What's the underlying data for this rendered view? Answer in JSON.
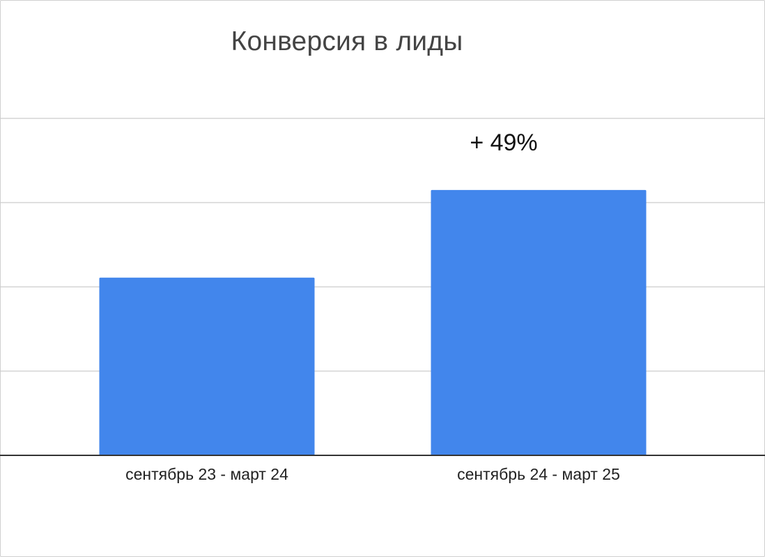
{
  "chart_data": {
    "type": "bar",
    "title": "Конверсия в лиды",
    "categories": [
      "сентябрь 23 - март 24",
      "сентябрь 24 - март 25"
    ],
    "values": [
      2.11,
      3.15
    ],
    "value_scale": "relative, unlabeled axis (gridline units)",
    "ylim": [
      0,
      4
    ],
    "grid": true,
    "y_tick_labels_shown": false,
    "bar_color": "#4286EC",
    "annotations": [
      {
        "category": "сентябрь 24 - март 25",
        "text": "+ 49%"
      }
    ]
  }
}
